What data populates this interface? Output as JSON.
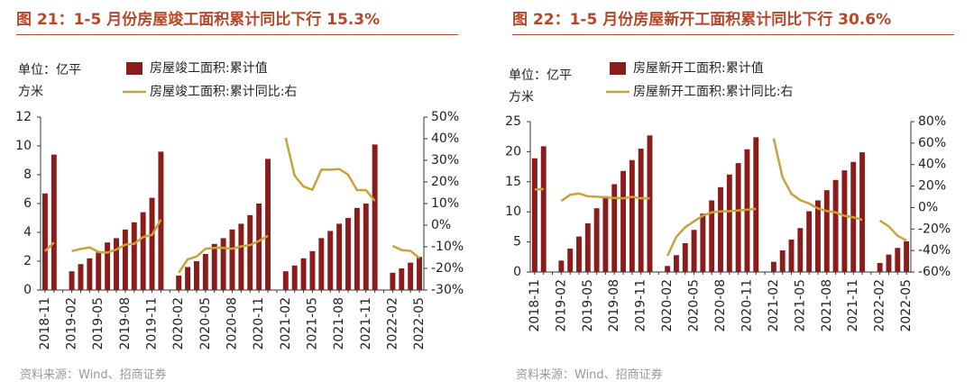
{
  "chart_data": [
    {
      "type": "combo",
      "title": "图 21：1-5 月份房屋竣工面积累计同比下行 15.3%",
      "y_label": "单位：亿平方米",
      "source": "资料来源：Wind、招商证券",
      "categories": [
        "2018-11",
        null,
        null,
        "2019-02",
        null,
        null,
        "2019-05",
        null,
        null,
        "2019-08",
        null,
        null,
        "2019-11",
        null,
        null,
        "2020-02",
        null,
        null,
        "2020-05",
        null,
        null,
        "2020-08",
        null,
        null,
        "2020-11",
        null,
        null,
        "2021-02",
        null,
        null,
        "2021-05",
        null,
        null,
        "2021-08",
        null,
        null,
        "2021-11",
        null,
        null,
        "2022-02",
        null,
        null,
        "2022-05"
      ],
      "series": [
        {
          "name": "房屋竣工面积:累计值",
          "type": "bar",
          "color": "#8b1c1c",
          "values": [
            6.7,
            9.4,
            null,
            1.3,
            1.8,
            2.2,
            2.6,
            3.3,
            3.6,
            4.2,
            4.7,
            5.4,
            6.4,
            9.6,
            null,
            1.0,
            1.6,
            2.0,
            2.5,
            3.2,
            3.6,
            4.2,
            4.6,
            5.2,
            6.0,
            9.1,
            null,
            1.3,
            1.7,
            2.2,
            2.7,
            3.6,
            4.1,
            4.6,
            5.0,
            5.7,
            6.0,
            10.1,
            null,
            1.2,
            1.5,
            1.9,
            2.3
          ]
        },
        {
          "name": "房屋竣工面积:累计同比:右",
          "type": "line",
          "axis": "y2",
          "color": "#c9a23a",
          "values": [
            -12,
            -8,
            null,
            -12,
            -11,
            -10.3,
            -12.4,
            -12.7,
            -11.3,
            -9,
            -8.6,
            -5.5,
            -4.5,
            2.6,
            null,
            -22,
            -15.8,
            -14.5,
            -10.9,
            -10.5,
            -10.5,
            -10.9,
            -9.8,
            -9.2,
            -7.3,
            -4.9,
            null,
            40.4,
            22.9,
            17.9,
            16.4,
            25.7,
            25.7,
            26,
            23.4,
            16.2,
            16.2,
            11.2,
            null,
            -9.6,
            -11.5,
            -11.9,
            -15.3
          ]
        }
      ],
      "ylim": [
        0,
        12
      ],
      "yticks": [
        0,
        2,
        4,
        6,
        8,
        10,
        12
      ],
      "y2lim": [
        -30,
        50
      ],
      "y2ticks": [
        {
          "value": -30,
          "label": "-30%"
        },
        {
          "value": -20,
          "label": "-20%"
        },
        {
          "value": -10,
          "label": "-10%"
        },
        {
          "value": 0,
          "label": "0%"
        },
        {
          "value": 10,
          "label": "10%"
        },
        {
          "value": 20,
          "label": "20%"
        },
        {
          "value": 30,
          "label": "30%"
        },
        {
          "value": 40,
          "label": "40%"
        },
        {
          "value": 50,
          "label": "50%"
        }
      ]
    },
    {
      "type": "combo",
      "title": "图 22：1-5 月份房屋新开工面积累计同比下行 30.6%",
      "y_label": "单位：亿平方米",
      "source": "资料来源：Wind、招商证券",
      "categories": [
        "2018-11",
        null,
        null,
        "2019-02",
        null,
        null,
        "2019-05",
        null,
        null,
        "2019-08",
        null,
        null,
        "2019-11",
        null,
        null,
        "2020-02",
        null,
        null,
        "2020-05",
        null,
        null,
        "2020-08",
        null,
        null,
        "2020-11",
        null,
        null,
        "2021-02",
        null,
        null,
        "2021-05",
        null,
        null,
        "2021-08",
        null,
        null,
        "2021-11",
        null,
        null,
        "2022-02",
        null,
        null,
        "2022-05"
      ],
      "series": [
        {
          "name": "房屋新开工面积:累计值",
          "type": "bar",
          "color": "#8b1c1c",
          "values": [
            18.9,
            20.9,
            null,
            1.9,
            3.9,
            5.9,
            8.1,
            10.6,
            12.6,
            14.6,
            16.8,
            18.6,
            20.5,
            22.7,
            null,
            1.0,
            2.8,
            4.8,
            7.0,
            9.7,
            11.9,
            14.1,
            16.2,
            18.1,
            20.4,
            22.4,
            null,
            1.7,
            3.6,
            5.4,
            7.3,
            10.1,
            11.9,
            13.6,
            15.3,
            16.9,
            18.3,
            19.9,
            null,
            1.5,
            2.9,
            4.0,
            5.1
          ]
        },
        {
          "name": "房屋新开工面积:累计同比:右",
          "type": "line",
          "axis": "y2",
          "color": "#c9a23a",
          "values": [
            16.8,
            17.2,
            null,
            6,
            11.9,
            13.1,
            10.5,
            10.1,
            9.5,
            8.9,
            8.6,
            10,
            8.6,
            8.5,
            null,
            -44.9,
            -27.2,
            -18.4,
            -12.8,
            -7.6,
            -4.5,
            -3.6,
            -3.4,
            -2.7,
            -2,
            -1.2,
            null,
            64.3,
            28.2,
            12.8,
            6.9,
            3.8,
            -0.9,
            -3.2,
            -4.5,
            -7.7,
            -9.1,
            -11.4,
            null,
            -12.2,
            -17.5,
            -26.3,
            -30.6
          ]
        }
      ],
      "ylim": [
        0,
        25
      ],
      "yticks": [
        0,
        5,
        10,
        15,
        20,
        25
      ],
      "y2lim": [
        -60,
        80
      ],
      "y2ticks": [
        {
          "value": -60,
          "label": "-60%"
        },
        {
          "value": -40,
          "label": "-40%"
        },
        {
          "value": -20,
          "label": "-20%"
        },
        {
          "value": 0,
          "label": "0%"
        },
        {
          "value": 20,
          "label": "20%"
        },
        {
          "value": 40,
          "label": "40%"
        },
        {
          "value": 60,
          "label": "60%"
        },
        {
          "value": 80,
          "label": "80%"
        }
      ]
    }
  ]
}
